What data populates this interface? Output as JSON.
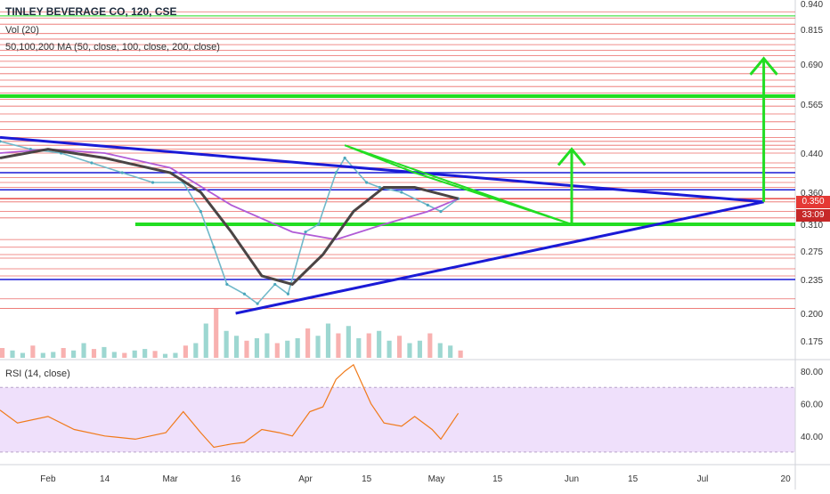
{
  "header": {
    "title": "TINLEY BEVERAGE CO, 120, CSE",
    "vol_label": "Vol (20)",
    "ma_label": "50,100,200 MA (50, close, 100, close, 200, close)",
    "rsi_label": "RSI (14, close)"
  },
  "price_tags": {
    "last_price": "0.350",
    "countdown": "33:09"
  },
  "colors": {
    "candle_up": "#26a69a",
    "candle_down": "#ef5350",
    "support_line": "#e53935",
    "trend_blue": "#1a1ad6",
    "target_green": "#22dd22",
    "ma_dark": "#4a4444",
    "ma_purple": "#b05ad6",
    "rsi_line": "#f07a1a",
    "rsi_band": "#efe0fb",
    "price_tag_red": "#e53935",
    "countdown_tag": "#c62828"
  },
  "chart_data": [
    {
      "type": "line",
      "name": "price",
      "y_ticks": [
        "0.940",
        "0.815",
        "0.690",
        "0.565",
        "0.440",
        "0.360",
        "0.310",
        "0.275",
        "0.235",
        "0.200",
        "0.175"
      ],
      "x_ticks": [
        "Feb",
        "14",
        "Mar",
        "16",
        "Apr",
        "15",
        "May",
        "15",
        "Jun",
        "15",
        "Jul",
        "20"
      ],
      "ylim": [
        0.16,
        0.95
      ],
      "close_series": {
        "x": [
          "2019-01-21",
          "2019-01-28",
          "2019-02-04",
          "2019-02-11",
          "2019-02-18",
          "2019-02-25",
          "2019-03-04",
          "2019-03-08",
          "2019-03-11",
          "2019-03-14",
          "2019-03-18",
          "2019-03-21",
          "2019-03-25",
          "2019-03-28",
          "2019-04-01",
          "2019-04-04",
          "2019-04-08",
          "2019-04-10",
          "2019-04-15",
          "2019-04-18",
          "2019-04-23",
          "2019-04-29",
          "2019-05-02",
          "2019-05-06"
        ],
        "values": [
          0.47,
          0.45,
          0.44,
          0.42,
          0.4,
          0.38,
          0.38,
          0.33,
          0.28,
          0.23,
          0.22,
          0.21,
          0.23,
          0.22,
          0.3,
          0.31,
          0.4,
          0.43,
          0.38,
          0.37,
          0.36,
          0.34,
          0.33,
          0.35
        ]
      },
      "moving_average_dark": {
        "x": [
          "2019-01-21",
          "2019-02-01",
          "2019-02-14",
          "2019-03-01",
          "2019-03-08",
          "2019-03-15",
          "2019-03-22",
          "2019-03-29",
          "2019-04-05",
          "2019-04-12",
          "2019-04-19",
          "2019-04-26",
          "2019-05-06"
        ],
        "values": [
          0.43,
          0.45,
          0.43,
          0.4,
          0.36,
          0.3,
          0.24,
          0.23,
          0.27,
          0.33,
          0.37,
          0.37,
          0.35
        ]
      },
      "moving_average_purple": {
        "x": [
          "2019-01-21",
          "2019-02-01",
          "2019-02-14",
          "2019-03-01",
          "2019-03-15",
          "2019-03-29",
          "2019-04-08",
          "2019-04-19",
          "2019-04-29",
          "2019-05-06"
        ],
        "values": [
          0.44,
          0.45,
          0.44,
          0.41,
          0.34,
          0.3,
          0.29,
          0.31,
          0.33,
          0.35
        ]
      },
      "horizontal_levels_red": [
        0.9,
        0.87,
        0.84,
        0.8,
        0.78,
        0.76,
        0.74,
        0.72,
        0.7,
        0.68,
        0.66,
        0.64,
        0.62,
        0.6,
        0.58,
        0.56,
        0.54,
        0.52,
        0.5,
        0.48,
        0.47,
        0.46,
        0.45,
        0.44,
        0.42,
        0.41,
        0.4,
        0.39,
        0.38,
        0.37,
        0.345,
        0.33,
        0.32,
        0.29,
        0.28,
        0.27,
        0.265,
        0.25,
        0.24,
        0.215,
        0.205
      ],
      "horizontal_levels_blue": [
        0.4,
        0.365,
        0.235
      ],
      "horizontal_levels_green": [
        0.88,
        0.59,
        0.31
      ],
      "trendlines_blue": [
        {
          "from": [
            "2019-01-21",
            0.48
          ],
          "to": [
            "2019-07-15",
            0.345
          ]
        },
        {
          "from": [
            "2019-03-16",
            0.2
          ],
          "to": [
            "2019-07-15",
            0.345
          ]
        }
      ],
      "triangle_green": {
        "points": [
          [
            "2019-04-10",
            0.46
          ],
          [
            "2019-04-26",
            0.4
          ],
          [
            "2019-06-01",
            0.31
          ]
        ]
      },
      "target_arrows": [
        {
          "x": "2019-06-01",
          "from": 0.31,
          "to": 0.45
        },
        {
          "x": "2019-07-15",
          "from": 0.345,
          "to": 0.71
        }
      ],
      "last_price": 0.35
    },
    {
      "type": "bar",
      "name": "volume",
      "note": "relative bar heights",
      "values": [
        0.2,
        0.15,
        0.1,
        0.25,
        0.1,
        0.12,
        0.2,
        0.15,
        0.3,
        0.18,
        0.22,
        0.12,
        0.1,
        0.15,
        0.18,
        0.14,
        0.08,
        0.1,
        0.25,
        0.3,
        0.7,
        1.0,
        0.55,
        0.45,
        0.35,
        0.4,
        0.5,
        0.3,
        0.35,
        0.4,
        0.6,
        0.45,
        0.7,
        0.5,
        0.65,
        0.4,
        0.5,
        0.55,
        0.35,
        0.45,
        0.3,
        0.35,
        0.5,
        0.3,
        0.25,
        0.15
      ]
    },
    {
      "type": "line",
      "name": "RSI",
      "y_ticks": [
        "80.00",
        "60.00",
        "40.00"
      ],
      "ylim": [
        25,
        85
      ],
      "band": [
        30,
        70
      ],
      "x": [
        "2019-01-21",
        "2019-01-25",
        "2019-02-01",
        "2019-02-07",
        "2019-02-14",
        "2019-02-21",
        "2019-02-28",
        "2019-03-04",
        "2019-03-08",
        "2019-03-11",
        "2019-03-15",
        "2019-03-18",
        "2019-03-22",
        "2019-03-26",
        "2019-03-29",
        "2019-04-02",
        "2019-04-05",
        "2019-04-08",
        "2019-04-10",
        "2019-04-12",
        "2019-04-16",
        "2019-04-19",
        "2019-04-23",
        "2019-04-26",
        "2019-04-30",
        "2019-05-02",
        "2019-05-06"
      ],
      "values": [
        56,
        48,
        52,
        44,
        40,
        38,
        42,
        55,
        42,
        33,
        35,
        36,
        44,
        42,
        40,
        55,
        58,
        75,
        80,
        84,
        60,
        48,
        46,
        52,
        44,
        38,
        54
      ]
    }
  ]
}
